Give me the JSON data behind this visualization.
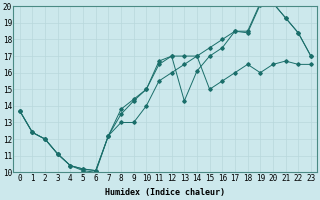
{
  "xlabel": "Humidex (Indice chaleur)",
  "bg_color": "#cce8ec",
  "line_color": "#1a6e6a",
  "grid_color": "#b8d8dc",
  "xlim": [
    -0.5,
    23.5
  ],
  "ylim": [
    10,
    20
  ],
  "yticks": [
    10,
    11,
    12,
    13,
    14,
    15,
    16,
    17,
    18,
    19,
    20
  ],
  "xticks": [
    0,
    1,
    2,
    3,
    4,
    5,
    6,
    7,
    8,
    9,
    10,
    11,
    12,
    13,
    14,
    15,
    16,
    17,
    18,
    19,
    20,
    21,
    22,
    23
  ],
  "line1_x": [
    0,
    1,
    2,
    3,
    4,
    5,
    6,
    7,
    8,
    9,
    10,
    11,
    12,
    13,
    14,
    15,
    16,
    17,
    18,
    19,
    20,
    21,
    22,
    23
  ],
  "line1_y": [
    13.7,
    12.4,
    12.0,
    11.1,
    10.4,
    10.1,
    10.0,
    12.2,
    13.8,
    14.4,
    15.0,
    16.7,
    17.0,
    14.3,
    16.1,
    17.0,
    17.5,
    18.5,
    18.4,
    20.1,
    20.2,
    19.3,
    18.4,
    17.0
  ],
  "line2_x": [
    0,
    1,
    2,
    3,
    4,
    5,
    6,
    7,
    8,
    9,
    10,
    11,
    12,
    13,
    14,
    15,
    16,
    17,
    18,
    19,
    20,
    21,
    22,
    23
  ],
  "line2_y": [
    13.7,
    12.4,
    12.0,
    11.1,
    10.4,
    10.2,
    10.1,
    12.2,
    13.5,
    14.3,
    15.0,
    16.5,
    17.0,
    17.0,
    17.0,
    17.5,
    18.0,
    18.5,
    18.5,
    20.2,
    20.2,
    19.3,
    18.4,
    17.0
  ],
  "line3_x": [
    0,
    1,
    2,
    3,
    4,
    5,
    6,
    7,
    8,
    9,
    10,
    11,
    12,
    13,
    14,
    15,
    16,
    17,
    18,
    19,
    20,
    21,
    22,
    23
  ],
  "line3_y": [
    13.7,
    12.4,
    12.0,
    11.1,
    10.4,
    10.2,
    10.1,
    12.2,
    13.0,
    13.0,
    14.0,
    15.5,
    16.0,
    16.5,
    17.0,
    15.0,
    15.5,
    16.0,
    16.5,
    16.0,
    16.5,
    16.7,
    16.5,
    16.5
  ],
  "xlabel_fontsize": 6.0,
  "tick_fontsize": 5.5
}
